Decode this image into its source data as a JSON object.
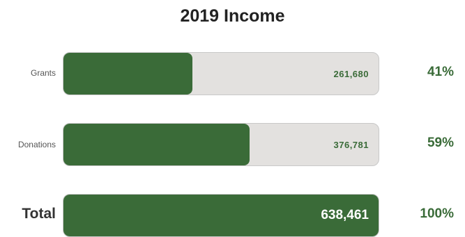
{
  "chart_data": {
    "type": "bar",
    "title": "2019 Income",
    "categories": [
      "Grants",
      "Donations"
    ],
    "values": [
      261680,
      376781
    ],
    "value_labels": [
      "261,680",
      "376,781"
    ],
    "percent_labels": [
      "41%",
      "59%"
    ],
    "total": {
      "label": "Total",
      "value": 638461,
      "value_label": "638,461",
      "percent_label": "100%"
    },
    "colors": {
      "fill": "#3a6b38",
      "track": "#e3e1df",
      "value_text": "#3a6b38",
      "percent_text": "#3a6b38"
    }
  }
}
